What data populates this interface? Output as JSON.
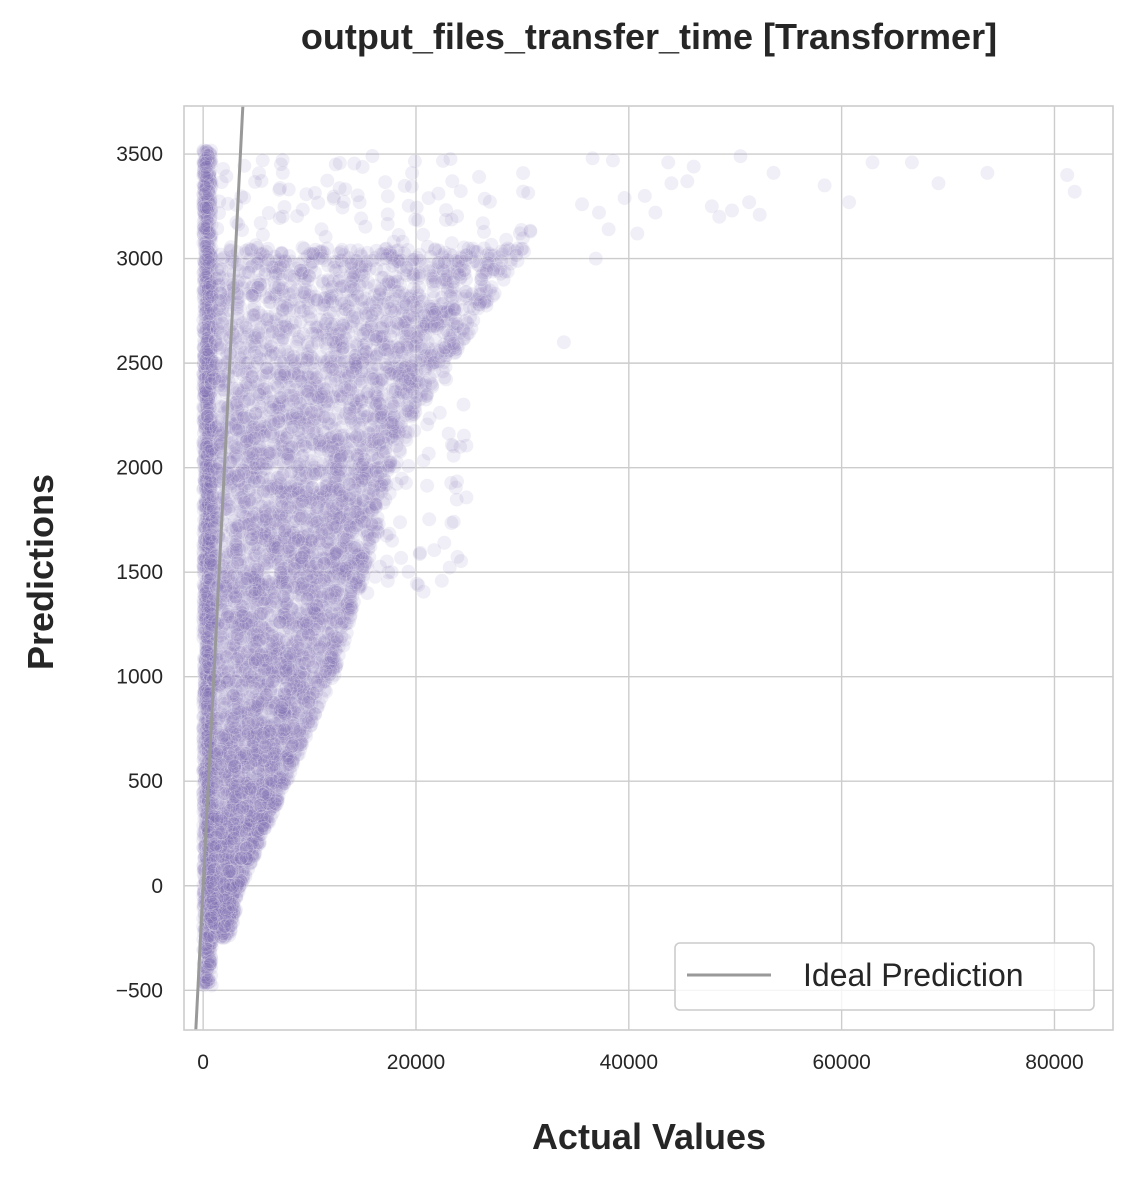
{
  "chart_data": {
    "type": "scatter",
    "title": "output_files_transfer_time [Transformer]",
    "xlabel": "Actual Values",
    "ylabel": "Predictions",
    "xlim": [
      -1800,
      85500
    ],
    "ylim": [
      -690,
      3730
    ],
    "xticks": [
      0,
      20000,
      40000,
      60000,
      80000
    ],
    "yticks": [
      -500,
      0,
      500,
      1000,
      1500,
      2000,
      2500,
      3000,
      3500
    ],
    "grid": true,
    "legend": {
      "position": "bottom-right",
      "entries": [
        "Ideal Prediction"
      ]
    },
    "colors": {
      "points": "#8172b3",
      "ideal_line": "#999999",
      "grid": "#cccccc"
    },
    "point_alpha": 0.12,
    "series": [
      {
        "type": "scatter",
        "density_regions": [
          {
            "x_range": [
              0,
              900
            ],
            "y_range": [
              -480,
              3520
            ],
            "approx_density": "very high"
          },
          {
            "x_range": [
              900,
              8000
            ],
            "y_range": [
              -200,
              3000
            ],
            "approx_density": "high"
          },
          {
            "x_range": [
              8000,
              22000
            ],
            "y_range": [
              1000,
              3050
            ],
            "approx_density": "medium"
          },
          {
            "x_range": [
              22000,
              32000
            ],
            "y_range": [
              2600,
              3100
            ],
            "approx_density": "low"
          }
        ],
        "outliers": [
          [
            36600,
            3480
          ],
          [
            38500,
            3470
          ],
          [
            43700,
            3460
          ],
          [
            46100,
            3440
          ],
          [
            50500,
            3490
          ],
          [
            53600,
            3410
          ],
          [
            58400,
            3350
          ],
          [
            60700,
            3270
          ],
          [
            62900,
            3460
          ],
          [
            66600,
            3460
          ],
          [
            69100,
            3360
          ],
          [
            73700,
            3410
          ],
          [
            81200,
            3400
          ],
          [
            81900,
            3320
          ],
          [
            38100,
            3140
          ],
          [
            40800,
            3120
          ],
          [
            44000,
            3360
          ],
          [
            45500,
            3370
          ],
          [
            47800,
            3250
          ],
          [
            49700,
            3230
          ],
          [
            51300,
            3270
          ],
          [
            52300,
            3210
          ],
          [
            36900,
            3000
          ],
          [
            33900,
            2600
          ],
          [
            41500,
            3300
          ],
          [
            42500,
            3220
          ],
          [
            48500,
            3200
          ],
          [
            37200,
            3220
          ],
          [
            39600,
            3290
          ],
          [
            35600,
            3260
          ]
        ]
      },
      {
        "name": "Ideal Prediction",
        "type": "line",
        "x": [
          -700,
          3760
        ],
        "y": [
          -700,
          3760
        ]
      }
    ]
  }
}
